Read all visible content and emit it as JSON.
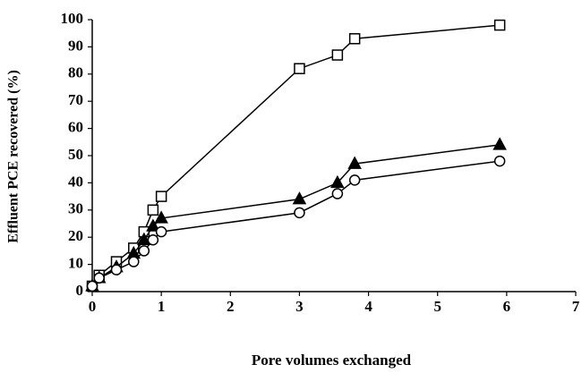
{
  "chart_data": {
    "type": "line",
    "x_label": "Pore volumes exchanged",
    "y_label": "Effluent PCE recovered (%)",
    "x": [
      0,
      0.1,
      0.35,
      0.6,
      0.75,
      0.88,
      1,
      3,
      3.55,
      3.8,
      5.9
    ],
    "series": [
      {
        "color": "#000000",
        "marker": "square",
        "marker_fill": "#ffffff",
        "values": [
          2,
          6,
          11,
          16,
          22,
          30,
          35,
          82,
          87,
          93,
          98
        ]
      },
      {
        "color": "#000000",
        "marker": "triangle",
        "marker_fill": "#000000",
        "values": [
          2,
          5,
          9,
          14,
          19,
          24,
          27,
          34,
          40,
          47,
          54
        ]
      },
      {
        "color": "#000000",
        "marker": "circle",
        "marker_fill": "#ffffff",
        "values": [
          2,
          5,
          8,
          11,
          15,
          19,
          22,
          29,
          36,
          41,
          48
        ]
      }
    ],
    "xlim": [
      0,
      7
    ],
    "xticks": [
      0,
      1,
      2,
      3,
      4,
      5,
      6,
      7
    ],
    "ylim": [
      0,
      100
    ],
    "yticks": [
      0,
      10,
      20,
      30,
      40,
      50,
      60,
      70,
      80,
      90,
      100
    ],
    "grid": false
  }
}
